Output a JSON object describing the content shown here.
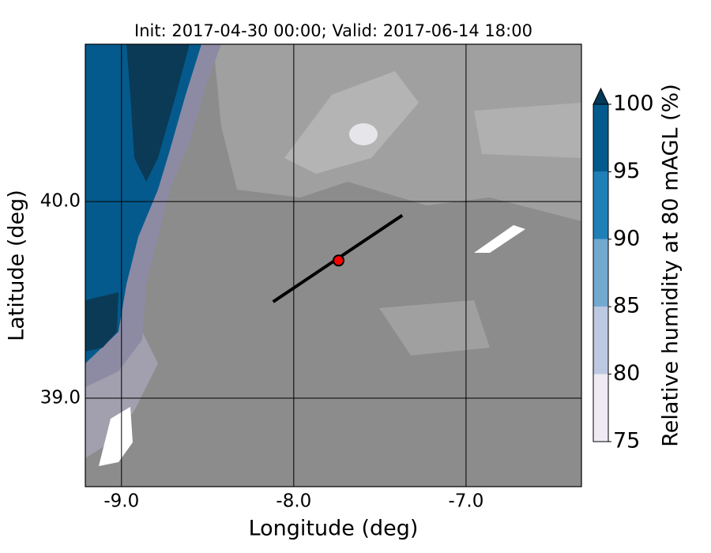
{
  "chart_data": {
    "type": "map",
    "title": "Init: 2017-04-30 00:00; Valid: 2017-06-14 18:00",
    "xlabel": "Longitude (deg)",
    "ylabel": "Latitude (deg)",
    "xlim": [
      -9.21,
      -6.33
    ],
    "ylim": [
      38.55,
      40.8
    ],
    "xticks": [
      {
        "value": -9,
        "label": "-9.0"
      },
      {
        "value": -8,
        "label": "-8.0"
      },
      {
        "value": -7,
        "label": "-7.0"
      }
    ],
    "yticks": [
      {
        "value": 39,
        "label": "39.0"
      },
      {
        "value": 40,
        "label": "40.0"
      }
    ],
    "grid": true,
    "colorbar": {
      "label": "Relative humidity at 80 mAGL (%)",
      "ticks": [
        75,
        80,
        85,
        90,
        95,
        100
      ],
      "colors": [
        "#efeaf3",
        "#bdc8e1",
        "#74a9cf",
        "#1f80b8",
        "#045a8d"
      ],
      "extend_color": "#023858"
    },
    "line": {
      "x": [
        -8.12,
        -7.37
      ],
      "y": [
        39.49,
        39.93
      ],
      "color": "#000000"
    },
    "point": {
      "x": -7.74,
      "y": 39.7,
      "color": "#ff0000"
    }
  }
}
